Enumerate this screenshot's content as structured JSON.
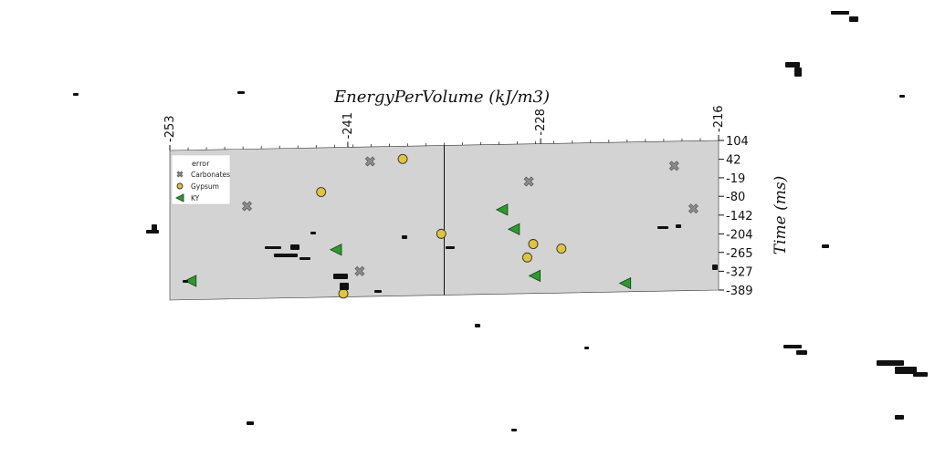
{
  "chart_data": {
    "type": "scatter",
    "title": "",
    "xlabel": "EnergyPerVolume (kJ/m3)",
    "ylabel": "Time (ms)",
    "x_axis_position": "top",
    "y_axis_position": "right",
    "xlim": [
      -253,
      -216
    ],
    "ylim": [
      -389,
      104
    ],
    "x_ticks": [
      "-253",
      "-241",
      "-228",
      "-216"
    ],
    "y_ticks": [
      "104",
      "42",
      "-19",
      "-80",
      "-142",
      "-204",
      "-265",
      "-327",
      "-389"
    ],
    "grid": false,
    "background": "#d3d3d3",
    "vertical_line_x": -234.5,
    "legend": {
      "title": "error",
      "placement": "top-left",
      "entries": [
        "Carbonates",
        "Gypsum",
        "KY"
      ]
    },
    "series": [
      {
        "name": "Carbonates",
        "marker": "x",
        "color": "#8c8c8c",
        "points": [
          {
            "x": -239.5,
            "y": 56
          },
          {
            "x": -240.2,
            "y": -305
          },
          {
            "x": -247.8,
            "y": -84
          },
          {
            "x": -228.8,
            "y": -20
          },
          {
            "x": -219.0,
            "y": 23
          },
          {
            "x": -217.7,
            "y": -119
          }
        ]
      },
      {
        "name": "Gypsum",
        "marker": "circle",
        "color": "#e0c43a",
        "points": [
          {
            "x": -237.3,
            "y": 62
          },
          {
            "x": -242.8,
            "y": -42
          },
          {
            "x": -241.3,
            "y": -378
          },
          {
            "x": -234.7,
            "y": -187
          },
          {
            "x": -228.5,
            "y": -226
          },
          {
            "x": -228.9,
            "y": -270
          },
          {
            "x": -226.6,
            "y": -243
          }
        ]
      },
      {
        "name": "KY",
        "marker": "triangle-left",
        "color": "#2e9a2e",
        "points": [
          {
            "x": -251.6,
            "y": -327
          },
          {
            "x": -241.8,
            "y": -233
          },
          {
            "x": -230.6,
            "y": -111
          },
          {
            "x": -229.8,
            "y": -176
          },
          {
            "x": -228.4,
            "y": -331
          },
          {
            "x": -222.3,
            "y": -361
          }
        ]
      }
    ]
  }
}
